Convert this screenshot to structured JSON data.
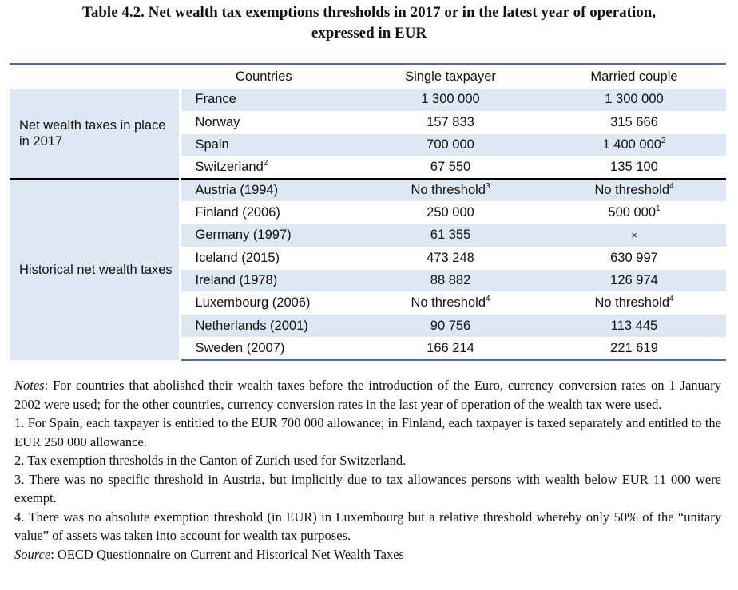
{
  "title_line1": "Table 4.2. Net wealth tax exemptions thresholds in 2017 or in the latest year of operation,",
  "title_line2": "expressed in EUR",
  "headers": {
    "countries": "Countries",
    "single": "Single taxpayer",
    "married": "Married couple"
  },
  "group_current": "Net wealth taxes in place in 2017",
  "group_historical": "Historical net wealth taxes",
  "rows": [
    {
      "country": "France",
      "country_sup": "",
      "single": "1 300 000",
      "single_sup": "",
      "married": "1 300 000",
      "married_sup": ""
    },
    {
      "country": "Norway",
      "country_sup": "",
      "single": "157 833",
      "single_sup": "",
      "married": "315 666",
      "married_sup": ""
    },
    {
      "country": "Spain",
      "country_sup": "",
      "single": "700 000",
      "single_sup": "",
      "married": "1 400 000",
      "married_sup": "2"
    },
    {
      "country": "Switzerland",
      "country_sup": "2",
      "single": "67 550",
      "single_sup": "",
      "married": "135 100",
      "married_sup": ""
    },
    {
      "country": "Austria (1994)",
      "country_sup": "",
      "single": "No threshold",
      "single_sup": "3",
      "married": "No threshold",
      "married_sup": "4"
    },
    {
      "country": "Finland (2006)",
      "country_sup": "",
      "single": "250 000",
      "single_sup": "",
      "married": "500 000",
      "married_sup": "1"
    },
    {
      "country": "Germany (1997)",
      "country_sup": "",
      "single": "61 355",
      "single_sup": "",
      "married": "×",
      "married_sup": ""
    },
    {
      "country": "Iceland (2015)",
      "country_sup": "",
      "single": "473 248",
      "single_sup": "",
      "married": "630 997",
      "married_sup": ""
    },
    {
      "country": "Ireland (1978)",
      "country_sup": "",
      "single": "88 882",
      "single_sup": "",
      "married": "126 974",
      "married_sup": ""
    },
    {
      "country": "Luxembourg (2006)",
      "country_sup": "",
      "single": "No threshold",
      "single_sup": "4",
      "married": "No threshold",
      "married_sup": "4"
    },
    {
      "country": "Netherlands (2001)",
      "country_sup": "",
      "single": "90 756",
      "single_sup": "",
      "married": "113 445",
      "married_sup": ""
    },
    {
      "country": "Sweden (2007)",
      "country_sup": "",
      "single": "166 214",
      "single_sup": "",
      "married": "221 619",
      "married_sup": ""
    }
  ],
  "notes": {
    "notes_label": "Notes",
    "notes_text": ": For countries that abolished their wealth taxes before the introduction of the Euro, currency conversion rates on 1 January 2002 were used; for the other countries, currency conversion rates in the last year of operation of the wealth tax were used.",
    "note1": "1. For Spain, each taxpayer is entitled to the EUR 700 000 allowance; in Finland, each taxpayer is taxed separately and entitled to the EUR 250 000 allowance.",
    "note2": "2. Tax exemption thresholds in the Canton of Zurich used for Switzerland.",
    "note3": "3. There was no specific threshold in Austria, but implicitly due to tax allowances persons with wealth below EUR 11 000 were exempt.",
    "note4": "4. There was no absolute exemption threshold (in EUR) in Luxembourg but a relative threshold whereby only 50% of the “unitary value” of assets was taken into account for wealth tax purposes.",
    "source_label": "Source",
    "source_text": ": OECD Questionnaire on Current and Historical Net Wealth Taxes"
  }
}
